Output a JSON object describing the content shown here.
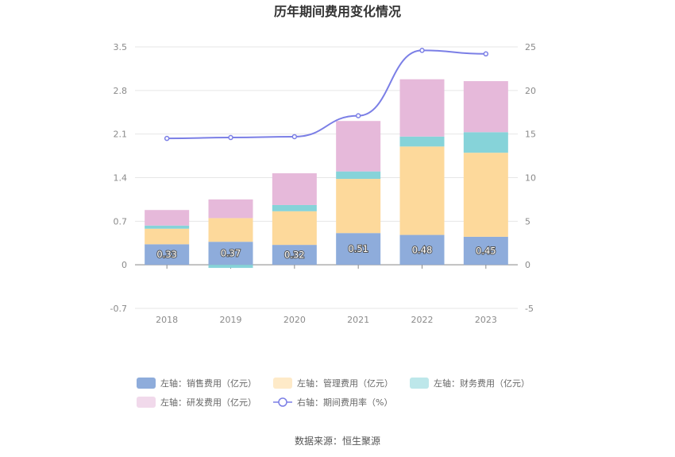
{
  "chart_data": {
    "type": "bar",
    "title": "历年期间费用变化情况",
    "categories": [
      "2018",
      "2019",
      "2020",
      "2021",
      "2022",
      "2023"
    ],
    "left_axis": {
      "min": -0.7,
      "max": 3.5,
      "ticks": [
        -0.7,
        0,
        0.7,
        1.4,
        2.1,
        2.8,
        3.5
      ],
      "tick_labels": [
        "-0.7",
        "0",
        "0.7",
        "1.4",
        "2.1",
        "2.8",
        "3.5"
      ]
    },
    "right_axis": {
      "min": -5,
      "max": 25,
      "ticks": [
        -5,
        0,
        5,
        10,
        15,
        20,
        25
      ],
      "tick_labels": [
        "-5",
        "0",
        "5",
        "10",
        "15",
        "20",
        "25"
      ]
    },
    "series": [
      {
        "name": "左轴：销售费用（亿元）",
        "type": "bar",
        "axis": "left",
        "color": "#8eacdb",
        "values": [
          0.33,
          0.37,
          0.32,
          0.51,
          0.48,
          0.45
        ],
        "labels": [
          "0.33",
          "0.37",
          "0.32",
          "0.51",
          "0.48",
          "0.45"
        ]
      },
      {
        "name": "左轴：管理费用（亿元）",
        "type": "bar",
        "axis": "left",
        "color": "#fdd99b",
        "values": [
          0.25,
          0.38,
          0.54,
          0.87,
          1.42,
          1.35
        ]
      },
      {
        "name": "左轴：财务费用（亿元）",
        "type": "bar",
        "axis": "left",
        "color": "#86d3d9",
        "values": [
          0.05,
          -0.05,
          0.1,
          0.12,
          0.16,
          0.33
        ]
      },
      {
        "name": "左轴：研发费用（亿元）",
        "type": "bar",
        "axis": "left",
        "color": "#e6b9da",
        "values": [
          0.25,
          0.3,
          0.51,
          0.81,
          0.92,
          0.82
        ]
      },
      {
        "name": "右轴：期间费用率（%）",
        "type": "line",
        "axis": "right",
        "color": "#7b7fe6",
        "values": [
          14.5,
          14.6,
          14.7,
          17.1,
          24.6,
          24.2
        ]
      }
    ],
    "legend_position": "bottom"
  },
  "source": "数据来源：恒生聚源"
}
